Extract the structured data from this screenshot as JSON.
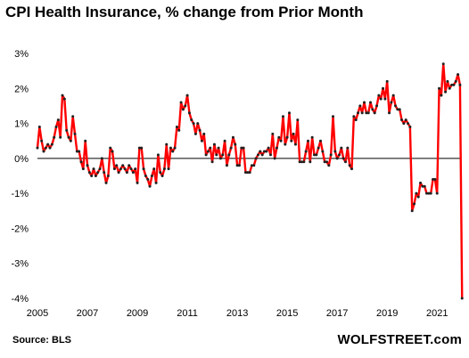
{
  "chart_data": {
    "type": "line",
    "title": "CPI Health Insurance, % change from Prior Month",
    "source": "Source: BLS",
    "brand": "WOLFSTREET.com",
    "xlabel": "",
    "ylabel": "",
    "x_start": "2005-01",
    "x_frequency": "monthly",
    "ylim": [
      -4,
      3
    ],
    "xlim": [
      2005,
      2021.92
    ],
    "y_ticks": [
      3,
      2,
      1,
      0,
      -1,
      -2,
      -3,
      -4
    ],
    "y_tick_labels": [
      "3%",
      "2%",
      "1%",
      "0%",
      "-1%",
      "-2%",
      "-3%",
      "-4%"
    ],
    "x_ticks": [
      2005,
      2007,
      2009,
      2011,
      2013,
      2015,
      2017,
      2019,
      2021
    ],
    "x_tick_labels": [
      "2005",
      "2007",
      "2009",
      "2011",
      "2013",
      "2015",
      "2017",
      "2019",
      "2021"
    ],
    "grid": false,
    "legend": false,
    "series": [
      {
        "name": "",
        "color": "#ff0000",
        "marker_color": "#222222",
        "values": [
          0.3,
          0.9,
          0.5,
          0.2,
          0.3,
          0.4,
          0.3,
          0.4,
          0.6,
          0.9,
          1.1,
          0.6,
          1.8,
          1.7,
          0.8,
          0.6,
          0.5,
          1.2,
          0.7,
          0.2,
          0.2,
          -0.1,
          -0.3,
          0.5,
          -0.2,
          -0.4,
          -0.5,
          -0.3,
          -0.5,
          -0.4,
          -0.3,
          0.0,
          -0.4,
          -0.7,
          -0.5,
          0.3,
          0.2,
          -0.3,
          -0.2,
          -0.4,
          -0.3,
          -0.2,
          -0.3,
          -0.4,
          -0.2,
          -0.3,
          -0.4,
          -0.3,
          -0.7,
          0.3,
          0.3,
          -0.3,
          -0.5,
          -0.6,
          -0.8,
          -0.5,
          -0.3,
          -0.7,
          0.1,
          -0.4,
          -0.5,
          -0.3,
          0.4,
          -0.3,
          0.3,
          0.2,
          0.3,
          0.9,
          0.8,
          1.6,
          1.4,
          1.5,
          1.8,
          1.3,
          1.1,
          1.0,
          0.7,
          1.0,
          0.8,
          0.5,
          0.7,
          0.1,
          0.2,
          0.3,
          -0.1,
          0.4,
          0.1,
          0.3,
          0.0,
          0.1,
          0.5,
          -0.2,
          0.1,
          0.3,
          0.6,
          0.4,
          -0.2,
          -0.2,
          0.3,
          0.3,
          -0.4,
          -0.4,
          -0.4,
          -0.2,
          -0.2,
          0.0,
          0.1,
          0.2,
          0.1,
          0.2,
          0.2,
          0.3,
          0.1,
          0.7,
          0.0,
          0.3,
          0.6,
          0.5,
          1.2,
          0.4,
          0.6,
          1.3,
          0.5,
          0.7,
          0.4,
          1.1,
          -0.1,
          -0.1,
          -0.1,
          0.2,
          0.5,
          -0.1,
          0.6,
          0.1,
          0.1,
          0.3,
          0.5,
          0.2,
          -0.1,
          -0.1,
          -0.2,
          0.1,
          1.2,
          0.2,
          0.0,
          0.1,
          0.3,
          0.0,
          -0.1,
          0.3,
          -0.2,
          -0.3,
          1.2,
          1.1,
          1.3,
          1.5,
          1.3,
          1.6,
          1.3,
          1.3,
          1.6,
          1.4,
          1.3,
          1.5,
          1.8,
          1.7,
          2.0,
          1.7,
          2.2,
          1.3,
          1.6,
          1.8,
          1.5,
          1.4,
          1.4,
          1.1,
          1.0,
          1.1,
          1.0,
          0.9,
          -1.5,
          -1.3,
          -1.0,
          -1.1,
          -0.7,
          -0.8,
          -0.8,
          -1.0,
          -1.0,
          -1.0,
          -0.6,
          -0.6,
          -1.0,
          2.0,
          1.8,
          2.7,
          1.9,
          2.2,
          2.0,
          2.1,
          2.1,
          2.2,
          2.4,
          2.1,
          -4.0
        ]
      }
    ]
  }
}
